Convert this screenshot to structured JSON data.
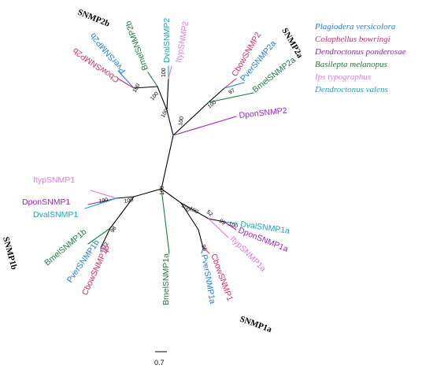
{
  "colors": {
    "plagiodera": "#1f7fd6",
    "colaphellus": "#d42b6a",
    "dendroctonus_p": "#9a23b8",
    "basilepta": "#1c7a3e",
    "ips": "#e07ad8",
    "dendroctonus_v": "#1aa6b8",
    "branch": "#000000"
  },
  "legend": [
    {
      "label": "Plagiodera versicolora",
      "color_key": "plagiodera"
    },
    {
      "label": "Colaphellus bowringi",
      "color_key": "colaphellus"
    },
    {
      "label": "Dendroctonus ponderosae",
      "color_key": "dendroctonus_p"
    },
    {
      "label": "Basilepta melanopus",
      "color_key": "basilepta"
    },
    {
      "label": "Ips typographus",
      "color_key": "ips"
    },
    {
      "label": "Dendroctonus valens",
      "color_key": "dendroctonus_v"
    }
  ],
  "groups": {
    "snmp2b": "SNMP2b",
    "snmp2a": "SNMP2a",
    "snmp1b": "SNMP1b",
    "snmp1a": "SNMP1a"
  },
  "leaves": {
    "dval2": "DvalSNMP2",
    "ityp2": "ItypSNMP2",
    "bmel2b": "BmelSNMP2b",
    "pver2b": "PverSNMP2b",
    "cbow2b": "CbowSNMP2b",
    "cbow2": "CbowSNMP2",
    "pver2a": "PverSNMP2a",
    "bmel2a": "BmelSNMP2a",
    "dpon2": "DponSNMP2",
    "ityp1": "ItypSNMP1",
    "dpon1": "DponSNMP1",
    "dval1": "DvalSNMP1",
    "bmel1b": "BmelSNMP1b",
    "pver1b": "PverSNMP1b",
    "cbow1b": "CbowSNMP1b",
    "bmel1a": "BmelSNMP1a",
    "pver1a": "PverSNMP1a",
    "cbow1": "CbowSNMP1",
    "ityp1a": "ItypSNMP1a",
    "dpon1a": "DponSNMP1a",
    "dval1a": "DvalSNMP1a"
  },
  "bootstrap": {
    "b1": "100",
    "b2": "100",
    "b3": "100",
    "b4": "100",
    "b5": "97",
    "b6": "100",
    "b7": "100",
    "b8": "100",
    "b9": "98",
    "b10": "72",
    "b11": "100",
    "b12": "100",
    "b13": "52",
    "b14": "99",
    "b15": "100",
    "b16": "96",
    "b17": "100",
    "b18": "100"
  },
  "scale_bar": {
    "value": "0.7"
  }
}
